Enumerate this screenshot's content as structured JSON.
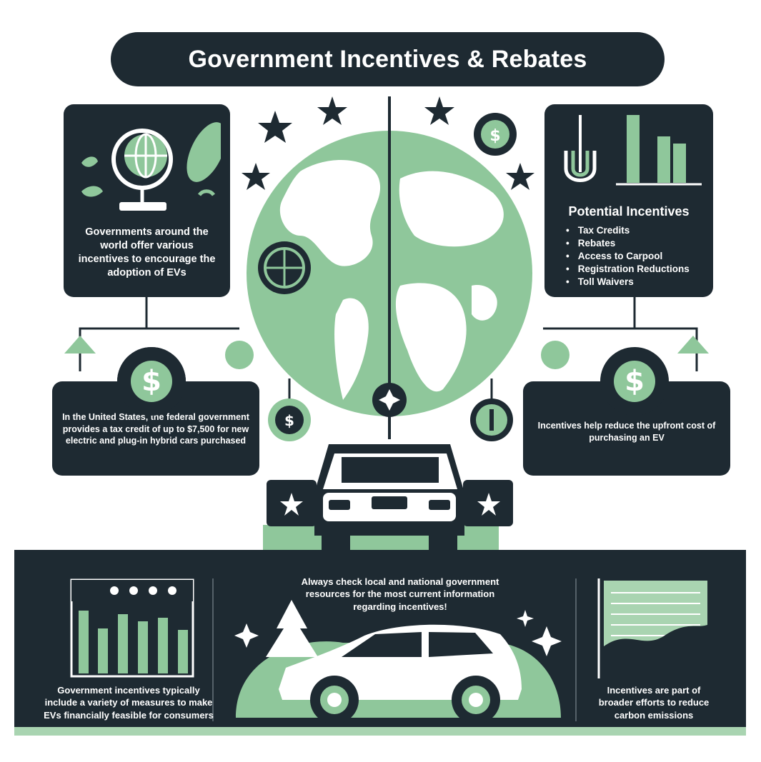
{
  "title": "Government Incentives & Rebates",
  "panels": {
    "global": {
      "text": "Governments around the world offer various incentives to encourage the adoption of EVs"
    },
    "potential": {
      "heading": "Potential Incentives",
      "items": [
        "Tax Credits",
        "Rebates",
        "Access to Carpool",
        "Registration Reductions",
        "Toll Waivers"
      ]
    },
    "us_credit": {
      "text": "In the United States, the federal government provides a tax credit of up to $7,500 for new electric and plug-in hybrid cars purchased"
    },
    "upfront": {
      "text": "Incentives help reduce the upfront cost of purchasing an EV"
    }
  },
  "bottom": {
    "left_text": "Government incentives typically include a variety of measures to make EVs financially feasible for consumers",
    "center_text": "Always check local and national government resources for the most current information regarding incentives!",
    "right_text": "Incentives are part of broader efforts to reduce carbon emissions"
  },
  "symbols": {
    "dollar": "$"
  },
  "colors": {
    "dark": "#1e2a32",
    "green": "#8fc79b",
    "light_green": "#a9d4b1",
    "white": "#ffffff"
  },
  "icons": [
    "globe-icon",
    "leaf-icon",
    "bar-chart-icon",
    "magnet-icon",
    "dollar-icon",
    "star-icon",
    "car-icon",
    "tree-icon",
    "sparkle-icon",
    "area-chart-icon"
  ]
}
